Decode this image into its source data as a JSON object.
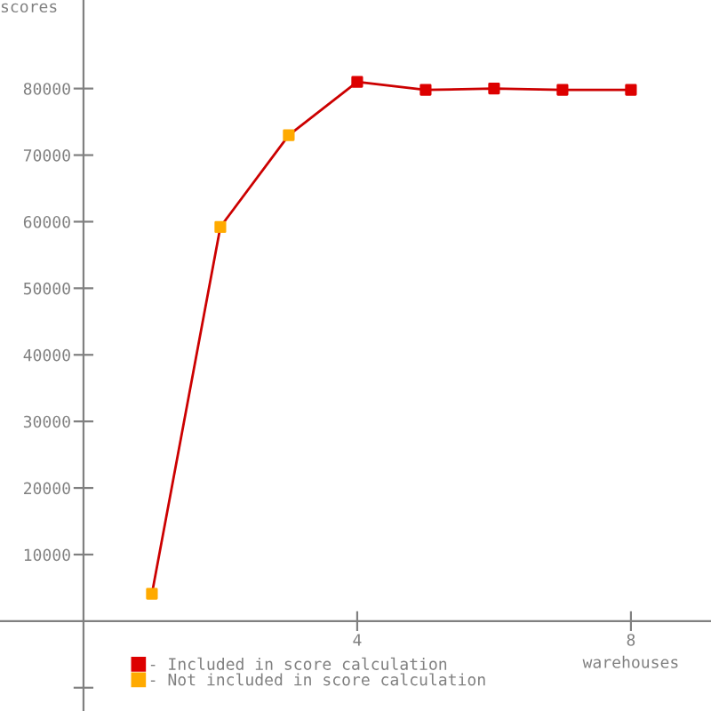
{
  "chart_data": {
    "type": "line",
    "xlabel": "warehouses",
    "ylabel": "scores",
    "x": [
      1,
      2,
      3,
      4,
      5,
      6,
      7,
      8
    ],
    "series": [
      {
        "marker": "none",
        "color": "#cc0000",
        "values": [
          4100,
          59200,
          73000,
          81000,
          79800,
          80000,
          79800,
          79800
        ]
      },
      {
        "type": "scatter",
        "marker": "square",
        "name": "- Included in score calculation",
        "color": "#dd0000",
        "values": [
          null,
          null,
          null,
          81000,
          79800,
          80000,
          79800,
          79800
        ]
      },
      {
        "type": "scatter",
        "marker": "square",
        "name": "- Not included in score calculation",
        "color": "#ffaa00",
        "values": [
          4100,
          59200,
          73000,
          null,
          null,
          null,
          null,
          null
        ]
      }
    ],
    "xlim": [
      -1.22,
      9.17
    ],
    "ylim": [
      -13500,
      93300
    ],
    "xticks": [
      4,
      8
    ],
    "yticks": [
      {
        "value": -10000,
        "label": null
      },
      10000,
      20000,
      30000,
      40000,
      50000,
      60000,
      70000,
      80000
    ],
    "grid": false,
    "legend": "bottom left"
  }
}
